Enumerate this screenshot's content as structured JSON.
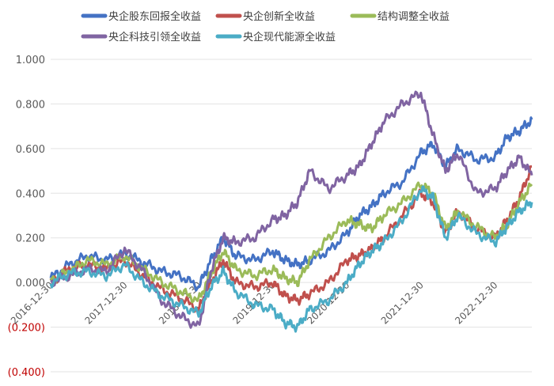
{
  "chart_data": {
    "type": "line",
    "title": "",
    "xlabel": "",
    "ylabel": "",
    "ylim": [
      -0.4,
      1.0
    ],
    "y_ticks": [
      1.0,
      0.8,
      0.6,
      0.4,
      0.2,
      0.0,
      -0.2,
      -0.4
    ],
    "y_tick_labels": [
      "1.000",
      "0.800",
      "0.600",
      "0.400",
      "0.200",
      "0.000",
      "(0.200)",
      "(0.400)"
    ],
    "x_range": [
      "2016-12-30",
      "2023-06-30"
    ],
    "x_tick_labels": [
      "2016-12-30",
      "2017-12-30",
      "2018-12-30",
      "2019-12-30",
      "2020-12-30",
      "2021-12-30",
      "2022-12-30"
    ],
    "grid": "horizontal",
    "legend_position": "top",
    "series": [
      {
        "name": "央企股东回报全收益",
        "color": "#4472c4",
        "x": [
          "2016-12-30",
          "2017-03-30",
          "2017-06-30",
          "2017-09-30",
          "2017-12-30",
          "2018-03-30",
          "2018-06-30",
          "2018-09-30",
          "2018-12-30",
          "2019-02-28",
          "2019-04-30",
          "2019-06-30",
          "2019-09-30",
          "2019-12-30",
          "2020-02-28",
          "2020-04-30",
          "2020-06-30",
          "2020-09-30",
          "2020-12-30",
          "2021-02-28",
          "2021-04-30",
          "2021-06-30",
          "2021-09-30",
          "2021-12-30",
          "2022-02-28",
          "2022-04-30",
          "2022-06-30",
          "2022-09-30",
          "2022-12-30",
          "2023-02-28",
          "2023-04-30",
          "2023-06-30"
        ],
        "values": [
          0.02,
          0.08,
          0.12,
          0.1,
          0.13,
          0.09,
          0.05,
          0.03,
          -0.02,
          0.1,
          0.2,
          0.12,
          0.1,
          0.14,
          0.1,
          0.08,
          0.1,
          0.14,
          0.22,
          0.3,
          0.34,
          0.4,
          0.45,
          0.58,
          0.62,
          0.52,
          0.6,
          0.55,
          0.56,
          0.65,
          0.68,
          0.73
        ]
      },
      {
        "name": "央企创新全收益",
        "color": "#c0504d",
        "x": [
          "2016-12-30",
          "2017-03-30",
          "2017-06-30",
          "2017-09-30",
          "2017-12-30",
          "2018-03-30",
          "2018-06-30",
          "2018-09-30",
          "2018-12-30",
          "2019-02-28",
          "2019-04-30",
          "2019-06-30",
          "2019-09-30",
          "2019-12-30",
          "2020-02-28",
          "2020-04-30",
          "2020-06-30",
          "2020-09-30",
          "2020-12-30",
          "2021-02-28",
          "2021-04-30",
          "2021-06-30",
          "2021-09-30",
          "2021-12-30",
          "2022-02-28",
          "2022-04-30",
          "2022-06-30",
          "2022-09-30",
          "2022-12-30",
          "2023-02-28",
          "2023-04-30",
          "2023-06-30"
        ],
        "values": [
          0.0,
          0.06,
          0.08,
          0.06,
          0.1,
          0.03,
          -0.03,
          -0.07,
          -0.12,
          0.0,
          0.1,
          0.0,
          -0.02,
          0.0,
          -0.06,
          -0.08,
          -0.05,
          0.0,
          0.1,
          0.12,
          0.15,
          0.2,
          0.3,
          0.4,
          0.36,
          0.22,
          0.32,
          0.24,
          0.2,
          0.28,
          0.38,
          0.52
        ]
      },
      {
        "name": "结构调整全收益",
        "color": "#9bbb59",
        "x": [
          "2016-12-30",
          "2017-03-30",
          "2017-06-30",
          "2017-09-30",
          "2017-12-30",
          "2018-03-30",
          "2018-06-30",
          "2018-09-30",
          "2018-12-30",
          "2019-02-28",
          "2019-04-30",
          "2019-06-30",
          "2019-09-30",
          "2019-12-30",
          "2020-02-28",
          "2020-04-30",
          "2020-06-30",
          "2020-09-30",
          "2020-12-30",
          "2021-02-28",
          "2021-04-30",
          "2021-06-30",
          "2021-09-30",
          "2021-12-30",
          "2022-02-28",
          "2022-04-30",
          "2022-06-30",
          "2022-09-30",
          "2022-12-30",
          "2023-02-28",
          "2023-04-30",
          "2023-06-30"
        ],
        "values": [
          0.01,
          0.05,
          0.1,
          0.08,
          0.12,
          0.06,
          0.0,
          -0.04,
          -0.08,
          0.04,
          0.14,
          0.06,
          0.03,
          0.06,
          0.02,
          0.0,
          0.1,
          0.2,
          0.28,
          0.26,
          0.24,
          0.3,
          0.36,
          0.44,
          0.4,
          0.24,
          0.32,
          0.25,
          0.2,
          0.26,
          0.36,
          0.44
        ]
      },
      {
        "name": "央企科技引领全收益",
        "color": "#8064a2",
        "x": [
          "2016-12-30",
          "2017-03-30",
          "2017-06-30",
          "2017-09-30",
          "2017-12-30",
          "2018-03-30",
          "2018-06-30",
          "2018-09-30",
          "2018-12-30",
          "2019-02-28",
          "2019-04-30",
          "2019-06-30",
          "2019-09-30",
          "2019-12-30",
          "2020-02-28",
          "2020-04-30",
          "2020-06-30",
          "2020-09-30",
          "2020-12-30",
          "2021-02-28",
          "2021-04-30",
          "2021-06-30",
          "2021-09-30",
          "2021-12-30",
          "2022-02-28",
          "2022-04-30",
          "2022-06-30",
          "2022-09-30",
          "2022-12-30",
          "2023-02-28",
          "2023-04-30",
          "2023-06-30"
        ],
        "values": [
          0.0,
          0.03,
          0.06,
          0.05,
          0.15,
          0.05,
          -0.08,
          -0.15,
          -0.2,
          0.05,
          0.2,
          0.18,
          0.2,
          0.28,
          0.3,
          0.36,
          0.5,
          0.42,
          0.48,
          0.52,
          0.62,
          0.72,
          0.8,
          0.85,
          0.66,
          0.5,
          0.58,
          0.4,
          0.42,
          0.5,
          0.56,
          0.48
        ]
      },
      {
        "name": "央企现代能源全收益",
        "color": "#4bacc6",
        "x": [
          "2016-12-30",
          "2017-03-30",
          "2017-06-30",
          "2017-09-30",
          "2017-12-30",
          "2018-03-30",
          "2018-06-30",
          "2018-09-30",
          "2018-12-30",
          "2019-02-28",
          "2019-04-30",
          "2019-06-30",
          "2019-09-30",
          "2019-12-30",
          "2020-02-28",
          "2020-04-30",
          "2020-06-30",
          "2020-09-30",
          "2020-12-30",
          "2021-02-28",
          "2021-04-30",
          "2021-06-30",
          "2021-09-30",
          "2021-12-30",
          "2022-02-28",
          "2022-04-30",
          "2022-06-30",
          "2022-09-30",
          "2022-12-30",
          "2023-02-28",
          "2023-04-30",
          "2023-06-30"
        ],
        "values": [
          0.0,
          0.04,
          0.05,
          0.03,
          0.08,
          0.0,
          -0.06,
          -0.1,
          -0.14,
          -0.02,
          0.05,
          -0.04,
          -0.1,
          -0.12,
          -0.18,
          -0.2,
          -0.12,
          -0.08,
          0.0,
          0.08,
          0.14,
          0.18,
          0.28,
          0.42,
          0.38,
          0.2,
          0.3,
          0.22,
          0.18,
          0.25,
          0.32,
          0.36
        ]
      }
    ]
  }
}
